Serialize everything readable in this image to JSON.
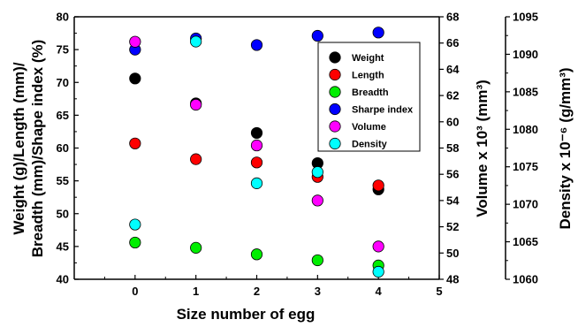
{
  "chart_data": {
    "type": "scatter",
    "x_axis": {
      "label": "Size number of egg",
      "range": [
        -1,
        5
      ],
      "ticks": [
        "0",
        "1",
        "2",
        "3",
        "4",
        "5"
      ]
    },
    "y_axes": [
      {
        "id": "left",
        "label_lines": [
          "Weight (g)/Length (mm)/",
          "Breadth (mm)/Shape index (%)"
        ],
        "range": [
          40,
          80
        ],
        "ticks": [
          "40",
          "45",
          "50",
          "55",
          "60",
          "65",
          "70",
          "75",
          "80"
        ]
      },
      {
        "id": "volume",
        "label": "Volume x 10³ (mm³)",
        "range": [
          48,
          68
        ],
        "ticks": [
          "48",
          "50",
          "52",
          "54",
          "56",
          "58",
          "60",
          "62",
          "64",
          "66",
          "68"
        ]
      },
      {
        "id": "density",
        "label": "Density x 10⁻⁶ (g/mm³)",
        "range": [
          1060,
          1095
        ],
        "ticks": [
          "1060",
          "1065",
          "1070",
          "1075",
          "1080",
          "1085",
          "1090",
          "1095"
        ]
      }
    ],
    "x": [
      0,
      1,
      2,
      3,
      4
    ],
    "series": [
      {
        "name": "Weight",
        "color": "#000000",
        "axis": "left",
        "values": [
          70.6,
          66.8,
          62.3,
          57.7,
          53.7
        ]
      },
      {
        "name": "Length",
        "color": "#ff0000",
        "axis": "left",
        "values": [
          60.7,
          58.3,
          57.8,
          55.6,
          54.3
        ]
      },
      {
        "name": "Breadth",
        "color": "#00ee00",
        "axis": "left",
        "values": [
          45.6,
          44.8,
          43.8,
          42.9,
          42.1
        ]
      },
      {
        "name": "Sharpe index",
        "color": "#0000ff",
        "axis": "left",
        "values": [
          75.0,
          76.7,
          75.7,
          77.1,
          77.6
        ]
      },
      {
        "name": "Volume",
        "color": "#ff00ff",
        "axis": "volume",
        "values": [
          66.1,
          61.3,
          58.2,
          54.0,
          50.5
        ]
      },
      {
        "name": "Density",
        "color": "#00ffff",
        "axis": "density",
        "values": [
          1067.3,
          1091.7,
          1072.8,
          1074.3,
          1061.0
        ]
      }
    ],
    "legend_position": "top-right",
    "grid": false
  }
}
